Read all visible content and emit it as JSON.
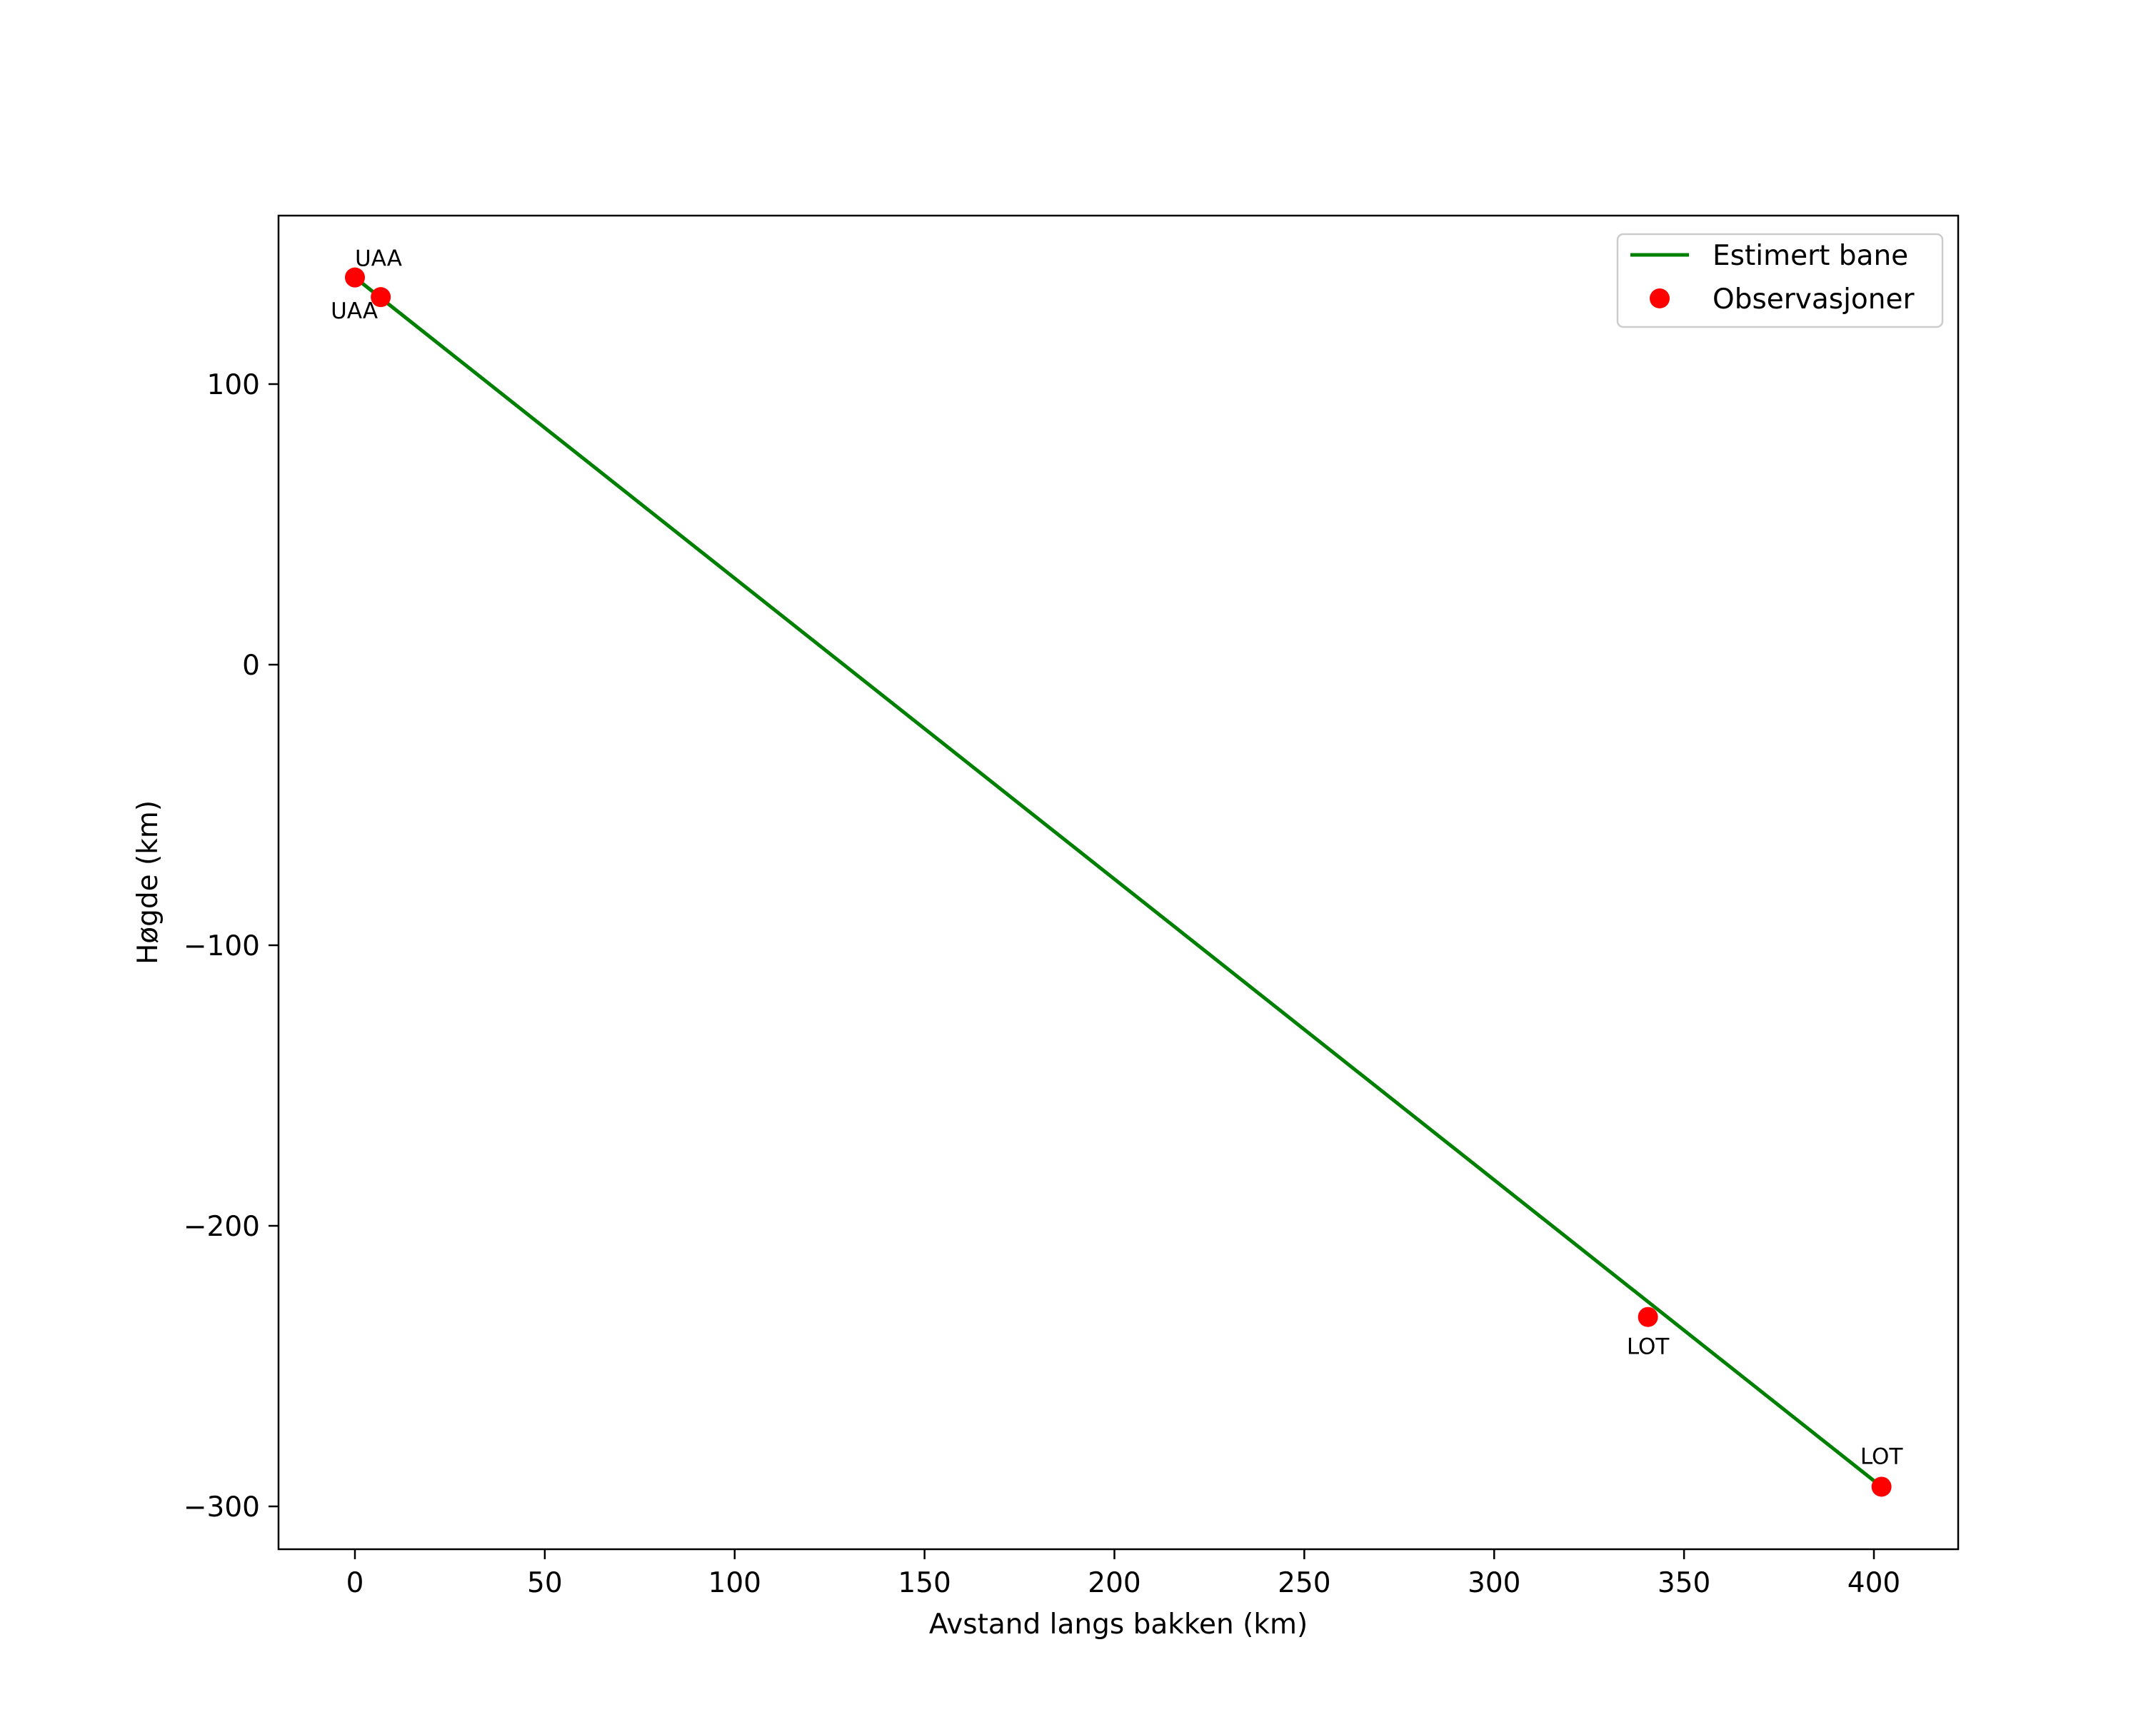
{
  "chart_data": {
    "type": "line",
    "title": "",
    "xlabel": "Avstand langs bakken (km)",
    "ylabel": "Høgde (km)",
    "xlim": [
      -20,
      422
    ],
    "ylim": [
      -315,
      160
    ],
    "xticks": [
      0,
      50,
      100,
      150,
      200,
      250,
      300,
      350,
      400
    ],
    "yticks": [
      100,
      0,
      -100,
      -200,
      -300
    ],
    "xtick_labels": [
      "0",
      "50",
      "100",
      "150",
      "200",
      "250",
      "300",
      "350",
      "400"
    ],
    "ytick_labels": [
      "100",
      "0",
      "−100",
      "−200",
      "−300"
    ],
    "grid": false,
    "legend_position": "upper right",
    "series": [
      {
        "name": "Estimert bane",
        "kind": "line",
        "color": "#008000",
        "x": [
          0,
          402
        ],
        "y": [
          138,
          -293
        ]
      },
      {
        "name": "Observasjoner",
        "kind": "scatter",
        "color": "#ff0000",
        "x": [
          0,
          6.8,
          340.5,
          402
        ],
        "y": [
          138,
          131,
          -232.5,
          -293
        ],
        "labels": [
          "UAA",
          "UAA",
          "LOT",
          "LOT"
        ]
      }
    ],
    "annotations": [
      {
        "text": "UAA",
        "x": 0,
        "y": 138,
        "position": "above-right"
      },
      {
        "text": "UAA",
        "x": 6.8,
        "y": 131,
        "position": "below-left"
      },
      {
        "text": "LOT",
        "x": 340.5,
        "y": -232.5,
        "position": "below"
      },
      {
        "text": "LOT",
        "x": 402,
        "y": -293,
        "position": "above"
      }
    ]
  },
  "legend": {
    "items": [
      {
        "label": "Estimert bane",
        "symbol": "line",
        "color": "#008000"
      },
      {
        "label": "Observasjoner",
        "symbol": "dot",
        "color": "#ff0000"
      }
    ]
  }
}
